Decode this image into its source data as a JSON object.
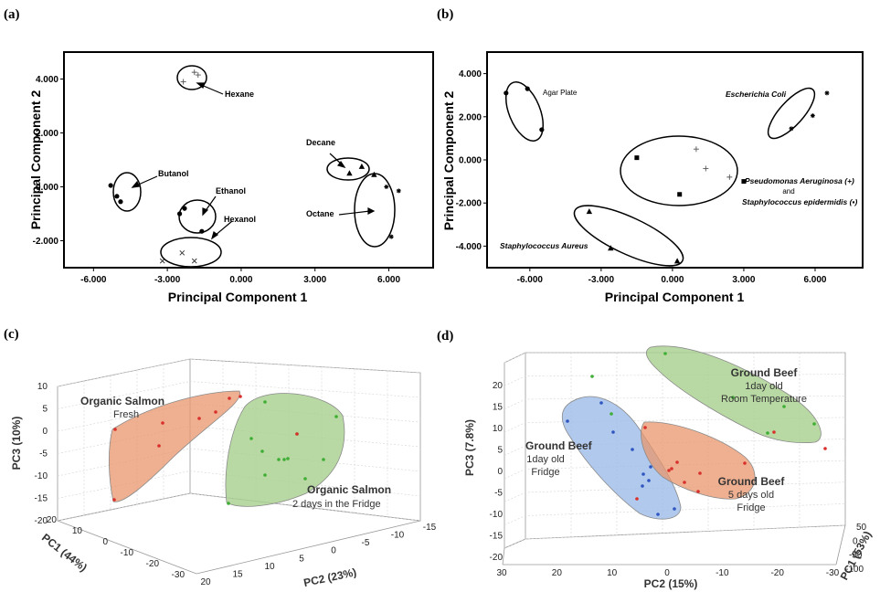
{
  "chart_data": [
    {
      "panel": "(a)",
      "type": "scatter",
      "xlabel": "Principal Component 1",
      "ylabel": "Principal Component 2",
      "xticks": [
        "-6.000",
        "-3.000",
        "0.000",
        "3.000",
        "6.000"
      ],
      "yticks": [
        "4.000",
        "2.000",
        "0.000",
        "-2.000"
      ],
      "xlim": [
        -7.2,
        7.8
      ],
      "ylim": [
        -3.0,
        5.0
      ],
      "groups": [
        {
          "name": "Hexane",
          "marker": "plus",
          "points": [
            [
              -1.9,
              4.25
            ],
            [
              -1.75,
              4.15
            ],
            [
              -2.35,
              3.9
            ]
          ]
        },
        {
          "name": "Butanol",
          "marker": "circle",
          "points": [
            [
              -5.3,
              0.05
            ],
            [
              -5.05,
              -0.35
            ],
            [
              -4.9,
              -0.55
            ]
          ]
        },
        {
          "name": "Ethanol",
          "marker": "circle",
          "points": [
            [
              -2.5,
              -1.0
            ],
            [
              -2.3,
              -0.8
            ],
            [
              -1.6,
              -1.65
            ]
          ]
        },
        {
          "name": "Hexanol",
          "marker": "x",
          "points": [
            [
              -3.2,
              -2.75
            ],
            [
              -2.4,
              -2.45
            ],
            [
              -1.9,
              -2.75
            ]
          ]
        },
        {
          "name": "Decane",
          "marker": "triangle",
          "points": [
            [
              4.4,
              0.5
            ],
            [
              4.9,
              0.75
            ],
            [
              5.4,
              0.45
            ]
          ]
        },
        {
          "name": "Octane",
          "marker": "star",
          "points": [
            [
              5.9,
              0.0
            ],
            [
              6.4,
              -0.15
            ],
            [
              6.1,
              -1.85
            ]
          ]
        }
      ]
    },
    {
      "panel": "(b)",
      "type": "scatter",
      "xlabel": "Principal Component 1",
      "ylabel": "Principal Component 2",
      "xticks": [
        "-6.000",
        "-3.000",
        "0.000",
        "3.000",
        "6.000"
      ],
      "yticks": [
        "4.000",
        "2.000",
        "0.000",
        "-2.000",
        "-4.000"
      ],
      "xlim": [
        -7.8,
        8.0
      ],
      "ylim": [
        -5.0,
        5.0
      ],
      "groups": [
        {
          "name": "Agar Plate",
          "marker": "circle",
          "points": [
            [
              -7.0,
              3.1
            ],
            [
              -6.1,
              3.3
            ],
            [
              -5.5,
              1.4
            ]
          ]
        },
        {
          "name": "Escherichia Coli",
          "marker": "star",
          "points": [
            [
              5.0,
              1.45
            ],
            [
              5.9,
              2.05
            ],
            [
              6.5,
              3.1
            ]
          ]
        },
        {
          "name": "Pseudomonas Aeruginosa (+)",
          "marker": "plus",
          "points": [
            [
              1.0,
              0.5
            ],
            [
              1.4,
              -0.4
            ],
            [
              2.4,
              -0.8
            ]
          ]
        },
        {
          "name": "Staphylococcus epidermidis (▪)",
          "marker": "square",
          "points": [
            [
              -1.5,
              0.1
            ],
            [
              0.3,
              -1.6
            ],
            [
              3.0,
              -1.0
            ]
          ]
        },
        {
          "name": "Staphylococcus Aureus",
          "marker": "triangle",
          "points": [
            [
              -3.5,
              -2.4
            ],
            [
              -2.6,
              -4.1
            ],
            [
              0.2,
              -4.7
            ]
          ]
        }
      ]
    },
    {
      "panel": "(c)",
      "type": "scatter3d",
      "axis_labels": [
        "PC1 (44%)",
        "PC2 (23%)",
        "PC3 (10%)"
      ],
      "pc1_ticks": [
        "20",
        "10",
        "0",
        "-10",
        "-20",
        "-30"
      ],
      "pc2_ticks": [
        "20",
        "15",
        "10",
        "5",
        "0",
        "-5",
        "-10",
        "-15"
      ],
      "pc3_ticks": [
        "10",
        "5",
        "0",
        "-5",
        "-10",
        "-15",
        "-20"
      ],
      "groups": [
        {
          "name": "Organic Salmon",
          "detail": "Fresh",
          "color": "#e8956c",
          "point_color": "#d9302c"
        },
        {
          "name": "Organic Salmon",
          "detail": "2 days in the Fridge",
          "color": "#a8d08d",
          "point_color": "#3fae35"
        }
      ]
    },
    {
      "panel": "(d)",
      "type": "scatter3d",
      "axis_labels": [
        "PC1 (53%)",
        "PC2 (15%)",
        "PC3 (7.8%)"
      ],
      "pc1_ticks": [
        "50",
        "0",
        "-50",
        "-100"
      ],
      "pc2_ticks": [
        "30",
        "20",
        "10",
        "0",
        "-10",
        "-20",
        "-30"
      ],
      "pc3_ticks": [
        "20",
        "15",
        "10",
        "5",
        "0",
        "-5",
        "-10",
        "-15",
        "-20"
      ],
      "groups": [
        {
          "name": "Ground Beef",
          "detail": [
            "1day old",
            "Room Temperature"
          ],
          "color": "#a8d08d",
          "point_color": "#3fae35"
        },
        {
          "name": "Ground Beef",
          "detail": [
            "1day old",
            "Fridge"
          ],
          "color": "#9dbbe8",
          "point_color": "#2f55c0"
        },
        {
          "name": "Ground Beef",
          "detail": [
            "5 days old",
            "Fridge"
          ],
          "color": "#e8956c",
          "point_color": "#d9302c"
        }
      ]
    }
  ]
}
